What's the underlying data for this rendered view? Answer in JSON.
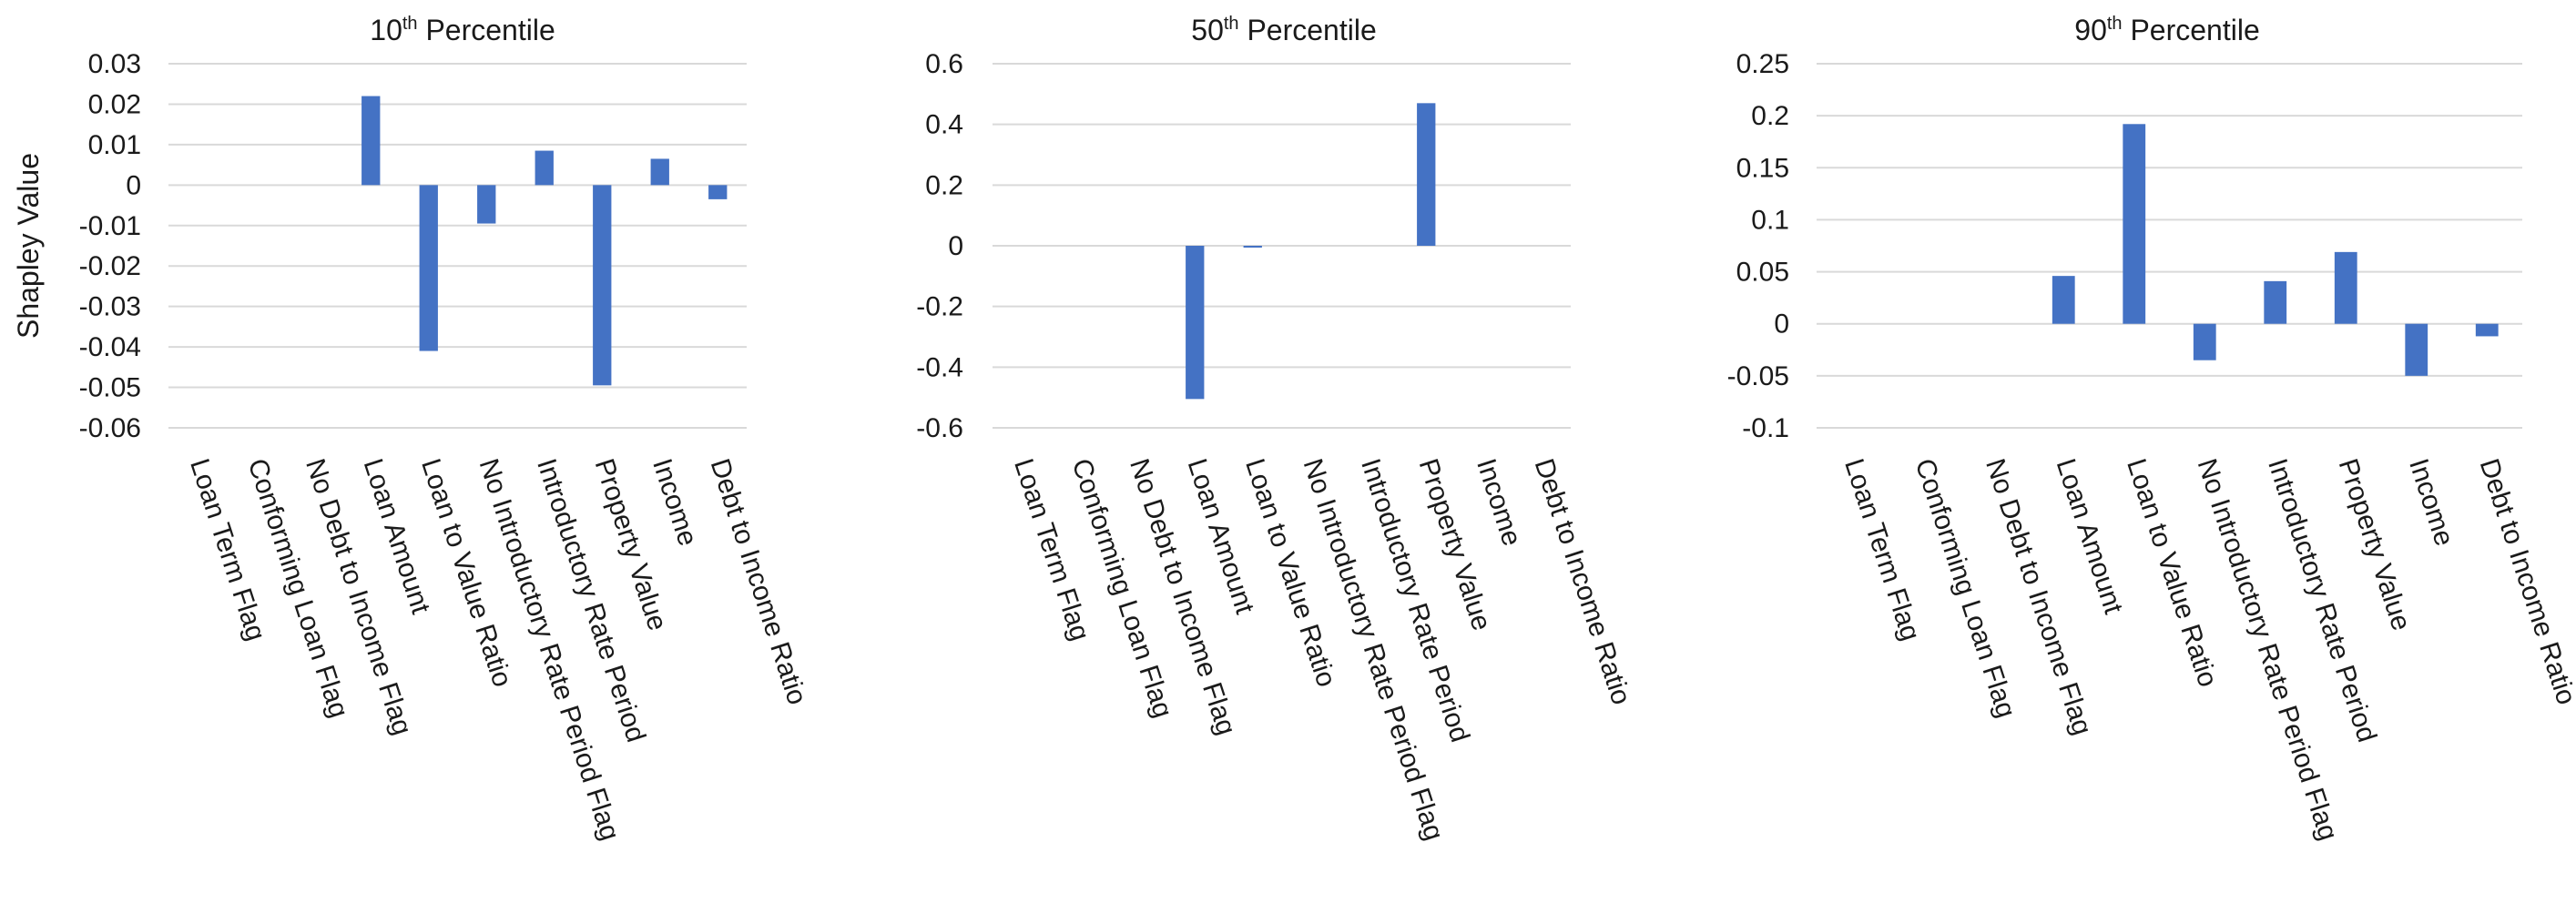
{
  "colors": {
    "bar": "#4472C4",
    "grid": "#D9D9D9",
    "text": "#1A1A1A"
  },
  "chart_data": [
    {
      "type": "bar",
      "title": {
        "main": "10",
        "sup": "th",
        "rest": " Percentile"
      },
      "ylabel": "Shapley Value",
      "ylim": [
        -0.06,
        0.03
      ],
      "yticks": [
        0.03,
        0.02,
        0.01,
        0,
        -0.01,
        -0.02,
        -0.03,
        -0.04,
        -0.05,
        -0.06
      ],
      "ytick_labels": [
        "0.03",
        "0.02",
        "0.01",
        "0",
        "-0.01",
        "-0.02",
        "-0.03",
        "-0.04",
        "-0.05",
        "-0.06"
      ],
      "grid": true,
      "categories": [
        "Loan Term Flag",
        "Conforming Loan Flag",
        "No Debt to Income Flag",
        "Loan Amount",
        "Loan to Value Ratio",
        "No Introductory Rate Period Flag",
        "Introductory Rate Period",
        "Property Value",
        "Income",
        "Debt to Income Ratio"
      ],
      "values": [
        0,
        0,
        0,
        0.022,
        -0.041,
        -0.0095,
        0.0085,
        -0.0495,
        0.0065,
        -0.0035
      ]
    },
    {
      "type": "bar",
      "title": {
        "main": "50",
        "sup": "th",
        "rest": " Percentile"
      },
      "ylabel": "",
      "ylim": [
        -0.6,
        0.6
      ],
      "yticks": [
        0.6,
        0.4,
        0.2,
        0,
        -0.2,
        -0.4,
        -0.6
      ],
      "ytick_labels": [
        "0.6",
        "0.4",
        "0.2",
        "0",
        "-0.2",
        "-0.4",
        "-0.6"
      ],
      "grid": true,
      "categories": [
        "Loan Term Flag",
        "Conforming Loan Flag",
        "No Debt to Income Flag",
        "Loan Amount",
        "Loan to Value Ratio",
        "No Introductory Rate Period Flag",
        "Introductory Rate Period",
        "Property Value",
        "Income",
        "Debt to Income Ratio"
      ],
      "values": [
        0,
        0,
        0,
        -0.505,
        -0.005,
        0,
        0,
        0.47,
        0,
        0
      ]
    },
    {
      "type": "bar",
      "title": {
        "main": "90",
        "sup": "th",
        "rest": " Percentile"
      },
      "ylabel": "",
      "ylim": [
        -0.1,
        0.25
      ],
      "yticks": [
        0.25,
        0.2,
        0.15,
        0.1,
        0.05,
        0,
        -0.05,
        -0.1
      ],
      "ytick_labels": [
        "0.25",
        "0.2",
        "0.15",
        "0.1",
        "0.05",
        "0",
        "-0.05",
        "-0.1"
      ],
      "grid": true,
      "categories": [
        "Loan Term Flag",
        "Conforming Loan Flag",
        "No Debt to Income Flag",
        "Loan Amount",
        "Loan to Value Ratio",
        "No Introductory Rate Period Flag",
        "Introductory Rate Period",
        "Property Value",
        "Income",
        "Debt to Income Ratio"
      ],
      "values": [
        0,
        0,
        0,
        0.046,
        0.192,
        -0.035,
        0.041,
        0.069,
        -0.05,
        -0.012
      ]
    }
  ]
}
